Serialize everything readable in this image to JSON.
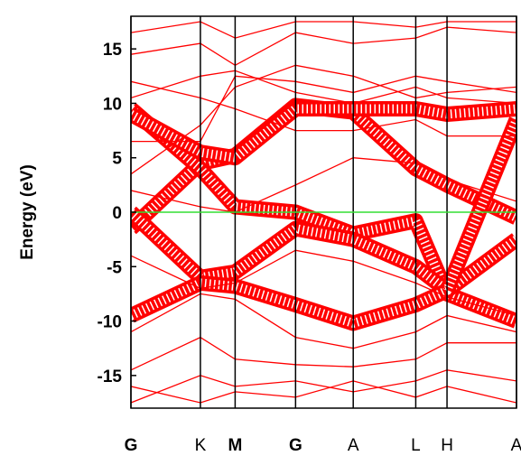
{
  "chart_data": {
    "type": "line",
    "title": "",
    "xlabel": "",
    "ylabel": "Energy (eV)",
    "ylim": [
      -18,
      18
    ],
    "y_ticks": [
      15,
      10,
      5,
      0,
      -5,
      -10,
      -15
    ],
    "k_points": [
      {
        "label": "G",
        "bold": true,
        "pos": 0
      },
      {
        "label": "K",
        "bold": false,
        "pos": 1
      },
      {
        "label": "M",
        "bold": true,
        "pos": 1.5
      },
      {
        "label": "G",
        "bold": true,
        "pos": 2.37
      },
      {
        "label": "A",
        "bold": false,
        "pos": 3.2
      },
      {
        "label": "L",
        "bold": false,
        "pos": 4.1
      },
      {
        "label": "H",
        "bold": false,
        "pos": 4.55
      },
      {
        "label": "A",
        "bold": false,
        "pos": 5.55
      }
    ],
    "fermi_level": 0,
    "colors": {
      "bands": "#ff0000",
      "fermi": "#33dd33",
      "axis": "#000000"
    },
    "series": [
      {
        "x": [
          0,
          1,
          1.5,
          2.37,
          3.2,
          4.1,
          4.55,
          5.55
        ],
        "y": [
          -1.5,
          4.5,
          5.2,
          9.8,
          9.2,
          4.0,
          2.5,
          -0.5
        ],
        "fat": true
      },
      {
        "x": [
          0,
          1,
          1.5,
          2.37,
          3.2,
          4.1,
          4.55,
          5.55
        ],
        "y": [
          9.5,
          4.0,
          0.5,
          0.0,
          -2.0,
          -0.8,
          -7.5,
          -10.0
        ],
        "fat": true
      },
      {
        "x": [
          0,
          1,
          1.5,
          2.37,
          3.2,
          4.1,
          4.55,
          5.55
        ],
        "y": [
          0.0,
          -6.0,
          -5.5,
          -1.5,
          -2.5,
          -5.0,
          -7.2,
          -2.5
        ],
        "fat": true
      },
      {
        "x": [
          0,
          1,
          1.5,
          2.37,
          3.2,
          4.1,
          4.55,
          5.55
        ],
        "y": [
          -9.5,
          -6.5,
          -6.8,
          -8.5,
          -10.2,
          -8.5,
          -7.2,
          8.5
        ],
        "fat": true
      },
      {
        "x": [
          0,
          1,
          1.5,
          2.37,
          3.2,
          4.1,
          4.55,
          5.55
        ],
        "y": [
          9.0,
          5.5,
          5.0,
          9.5,
          9.5,
          9.5,
          9.0,
          9.5
        ],
        "fat": true
      },
      {
        "x": [
          0,
          1,
          1.5,
          2.37,
          3.2,
          4.1,
          4.55,
          5.55
        ],
        "y": [
          -4.0,
          -7.0,
          -6.5,
          -3.5,
          -4.5,
          -6.5,
          -7.8,
          -9.5
        ],
        "fat": false
      },
      {
        "x": [
          0,
          1,
          1.5,
          2.37,
          3.2,
          4.1,
          4.55,
          5.55
        ],
        "y": [
          -11.0,
          -7.5,
          -8.0,
          -11.5,
          -12.5,
          -11.0,
          -9.5,
          -11.0
        ],
        "fat": false
      },
      {
        "x": [
          0,
          1,
          1.5,
          2.37,
          3.2,
          4.1,
          4.55,
          5.55
        ],
        "y": [
          -14.5,
          -11.5,
          -13.5,
          -14.0,
          -14.2,
          -13.5,
          -12.0,
          -12.0
        ],
        "fat": false
      },
      {
        "x": [
          0,
          1,
          1.5,
          2.37,
          3.2,
          4.1,
          4.55,
          5.55
        ],
        "y": [
          -17.5,
          -15.0,
          -16.0,
          -15.5,
          -16.5,
          -15.5,
          -14.5,
          -15.5
        ],
        "fat": false
      },
      {
        "x": [
          0,
          1,
          1.5,
          2.37,
          3.2,
          4.1,
          4.55,
          5.55
        ],
        "y": [
          3.5,
          8.0,
          11.5,
          13.5,
          12.5,
          10.5,
          11.0,
          11.5
        ],
        "fat": false
      },
      {
        "x": [
          0,
          1,
          1.5,
          2.37,
          3.2,
          4.1,
          4.55,
          5.55
        ],
        "y": [
          6.5,
          6.5,
          12.5,
          12.0,
          11.0,
          12.5,
          12.0,
          11.0
        ],
        "fat": false
      },
      {
        "x": [
          0,
          1,
          1.5,
          2.37,
          3.2,
          4.1,
          4.55,
          5.55
        ],
        "y": [
          10.5,
          12.5,
          13.0,
          11.0,
          10.0,
          11.5,
          10.5,
          10.0
        ],
        "fat": false
      },
      {
        "x": [
          0,
          1,
          1.5,
          2.37,
          3.2,
          4.1,
          4.55,
          5.55
        ],
        "y": [
          14.5,
          15.5,
          13.5,
          16.5,
          15.5,
          16.0,
          17.0,
          16.5
        ],
        "fat": false
      },
      {
        "x": [
          0,
          1,
          1.5,
          2.37,
          3.2,
          4.1,
          4.55,
          5.55
        ],
        "y": [
          16.5,
          17.5,
          16.0,
          17.5,
          17.5,
          17.0,
          17.5,
          17.5
        ],
        "fat": false
      },
      {
        "x": [
          0,
          1,
          1.5,
          2.37,
          3.2,
          4.1,
          4.55,
          5.55
        ],
        "y": [
          12.0,
          10.5,
          9.5,
          7.5,
          7.5,
          8.5,
          7.0,
          7.0
        ],
        "fat": false
      },
      {
        "x": [
          0,
          1,
          1.5,
          2.37,
          3.2,
          4.1,
          4.55,
          5.55
        ],
        "y": [
          2.0,
          0.5,
          0.0,
          2.5,
          5.0,
          4.5,
          3.0,
          1.0
        ],
        "fat": false
      },
      {
        "x": [
          0,
          1,
          1.5,
          2.37,
          3.2,
          4.1,
          4.55,
          5.55
        ],
        "y": [
          -16.0,
          -17.5,
          -16.5,
          -17.0,
          -15.5,
          -17.0,
          -16.0,
          -17.5
        ],
        "fat": false
      }
    ]
  }
}
